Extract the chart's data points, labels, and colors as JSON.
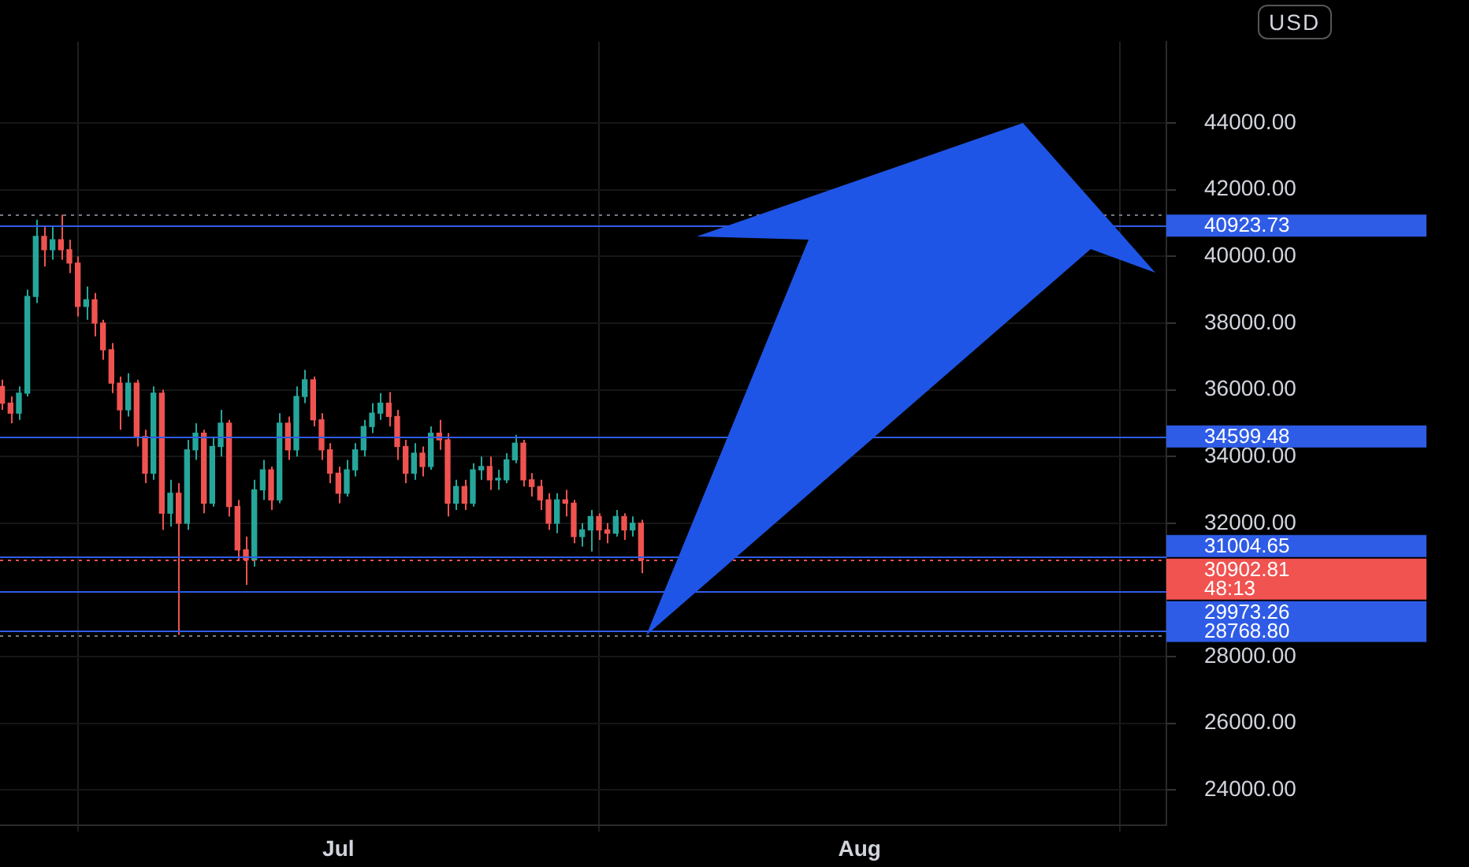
{
  "chart_data": {
    "type": "candlestick",
    "x": [
      "--06-11T00:00",
      "--06-11T12:00",
      "--06-12T00:00",
      "--06-12T12:00",
      "--06-13T00:00",
      "--06-13T12:00",
      "--06-14T00:00",
      "--06-14T12:00",
      "--06-15T00:00",
      "--06-15T12:00",
      "--06-16T00:00",
      "--06-16T12:00",
      "--06-17T00:00",
      "--06-17T12:00",
      "--06-18T00:00",
      "--06-18T12:00",
      "--06-19T00:00",
      "--06-19T12:00",
      "--06-20T00:00",
      "--06-20T12:00",
      "--06-21T00:00",
      "--06-21T12:00",
      "--06-22T00:00",
      "--06-22T12:00",
      "--06-23T00:00",
      "--06-23T12:00",
      "--06-24T00:00",
      "--06-24T12:00",
      "--06-25T00:00",
      "--06-25T12:00",
      "--06-26T00:00",
      "--06-26T12:00",
      "--06-27T00:00",
      "--06-27T12:00",
      "--06-28T00:00",
      "--06-28T12:00",
      "--06-29T00:00",
      "--06-29T12:00",
      "--06-30T00:00",
      "--06-30T12:00",
      "--07-01T00:00",
      "--07-01T12:00",
      "--07-02T00:00",
      "--07-02T12:00",
      "--07-03T00:00",
      "--07-03T12:00",
      "--07-04T00:00",
      "--07-04T12:00",
      "--07-05T00:00",
      "--07-05T12:00",
      "--07-06T00:00",
      "--07-06T12:00",
      "--07-07T00:00",
      "--07-07T12:00",
      "--07-08T00:00",
      "--07-08T12:00",
      "--07-09T00:00",
      "--07-09T12:00",
      "--07-10T00:00",
      "--07-10T12:00",
      "--07-11T00:00",
      "--07-11T12:00",
      "--07-12T00:00",
      "--07-12T12:00",
      "--07-13T00:00",
      "--07-13T12:00",
      "--07-14T00:00",
      "--07-14T12:00",
      "--07-15T00:00",
      "--07-15T12:00",
      "--07-16T00:00",
      "--07-16T12:00",
      "--07-17T00:00",
      "--07-17T12:00",
      "--07-18T00:00",
      "--07-18T12:00",
      "--07-19T00:00"
    ],
    "ohlc": [
      [
        36100,
        36300,
        35400,
        35600
      ],
      [
        35600,
        35800,
        35000,
        35300
      ],
      [
        35300,
        36100,
        35100,
        35900
      ],
      [
        35900,
        39000,
        35800,
        38800
      ],
      [
        38800,
        41100,
        38600,
        40600
      ],
      [
        40600,
        40900,
        39700,
        40200
      ],
      [
        40200,
        40900,
        39900,
        40500
      ],
      [
        40500,
        41250,
        39900,
        40200
      ],
      [
        40200,
        40500,
        39500,
        39800
      ],
      [
        39800,
        40000,
        38200,
        38500
      ],
      [
        38500,
        39100,
        38100,
        38700
      ],
      [
        38700,
        38900,
        37600,
        38000
      ],
      [
        38000,
        38100,
        36900,
        37200
      ],
      [
        37200,
        37400,
        35900,
        36200
      ],
      [
        36200,
        36400,
        34800,
        35400
      ],
      [
        35400,
        36500,
        35200,
        36200
      ],
      [
        36200,
        36300,
        34300,
        34600
      ],
      [
        34600,
        34800,
        33200,
        33500
      ],
      [
        33500,
        36100,
        33300,
        35900
      ],
      [
        35900,
        36000,
        31800,
        32300
      ],
      [
        32300,
        33300,
        31900,
        32900
      ],
      [
        32900,
        33200,
        28650,
        32000
      ],
      [
        32000,
        34500,
        31800,
        34200
      ],
      [
        34200,
        35000,
        33900,
        34700
      ],
      [
        34700,
        34800,
        32300,
        32600
      ],
      [
        32600,
        34600,
        32500,
        34300
      ],
      [
        34300,
        35400,
        34000,
        35000
      ],
      [
        35000,
        35100,
        32200,
        32500
      ],
      [
        32500,
        32700,
        30900,
        31200
      ],
      [
        31200,
        31600,
        30150,
        30900
      ],
      [
        30900,
        33300,
        30700,
        33000
      ],
      [
        33000,
        33900,
        32700,
        33600
      ],
      [
        33600,
        33700,
        32400,
        32700
      ],
      [
        32700,
        35300,
        32600,
        35000
      ],
      [
        35000,
        35200,
        33900,
        34200
      ],
      [
        34200,
        36100,
        34000,
        35800
      ],
      [
        35800,
        36600,
        35600,
        36300
      ],
      [
        36300,
        36400,
        34900,
        35100
      ],
      [
        35100,
        35300,
        33900,
        34200
      ],
      [
        34200,
        34400,
        33200,
        33500
      ],
      [
        33500,
        33700,
        32600,
        32900
      ],
      [
        32900,
        33900,
        32800,
        33600
      ],
      [
        33600,
        34400,
        33400,
        34200
      ],
      [
        34200,
        35100,
        34000,
        34900
      ],
      [
        34900,
        35600,
        34700,
        35300
      ],
      [
        35300,
        35900,
        35100,
        35600
      ],
      [
        35600,
        35930,
        34900,
        35200
      ],
      [
        35200,
        35400,
        33900,
        34300
      ],
      [
        34300,
        34500,
        33200,
        33500
      ],
      [
        33500,
        34400,
        33300,
        34100
      ],
      [
        34100,
        34300,
        33400,
        33700
      ],
      [
        33700,
        34900,
        33600,
        34700
      ],
      [
        34700,
        35100,
        34200,
        34500
      ],
      [
        34500,
        34700,
        32200,
        32600
      ],
      [
        32600,
        33300,
        32400,
        33100
      ],
      [
        33100,
        33300,
        32400,
        32600
      ],
      [
        32600,
        33800,
        32500,
        33600
      ],
      [
        33600,
        34000,
        33300,
        33700
      ],
      [
        33700,
        34000,
        33000,
        33300
      ],
      [
        33300,
        33600,
        33000,
        33300
      ],
      [
        33300,
        34100,
        33200,
        33900
      ],
      [
        33900,
        34650,
        33800,
        34400
      ],
      [
        34400,
        34500,
        33100,
        33300
      ],
      [
        33300,
        33500,
        32800,
        33100
      ],
      [
        33100,
        33300,
        32400,
        32700
      ],
      [
        32700,
        32900,
        31800,
        32000
      ],
      [
        32000,
        32900,
        31700,
        32700
      ],
      [
        32700,
        33000,
        32200,
        32600
      ],
      [
        32600,
        32700,
        31400,
        31600
      ],
      [
        31600,
        32000,
        31300,
        31800
      ],
      [
        31800,
        32400,
        31150,
        32200
      ],
      [
        32200,
        32300,
        31500,
        31800
      ],
      [
        31800,
        32000,
        31400,
        31700
      ],
      [
        31700,
        32400,
        31600,
        32200
      ],
      [
        32200,
        32300,
        31500,
        31800
      ],
      [
        31800,
        32200,
        31600,
        32000
      ],
      [
        32000,
        32100,
        30500,
        30902.81
      ]
    ],
    "colors": [
      "#ef5350",
      "#ef5350",
      "#26a69a",
      "#26a69a",
      "#26a69a",
      "#ef5350",
      "#26a69a",
      "#ef5350",
      "#ef5350",
      "#ef5350",
      "#26a69a",
      "#ef5350",
      "#ef5350",
      "#ef5350",
      "#ef5350",
      "#26a69a",
      "#ef5350",
      "#ef5350",
      "#26a69a",
      "#ef5350",
      "#26a69a",
      "#ef5350",
      "#26a69a",
      "#26a69a",
      "#ef5350",
      "#26a69a",
      "#26a69a",
      "#ef5350",
      "#ef5350",
      "#ef5350",
      "#26a69a",
      "#26a69a",
      "#ef5350",
      "#26a69a",
      "#ef5350",
      "#26a69a",
      "#26a69a",
      "#ef5350",
      "#ef5350",
      "#ef5350",
      "#ef5350",
      "#26a69a",
      "#26a69a",
      "#26a69a",
      "#26a69a",
      "#26a69a",
      "#ef5350",
      "#ef5350",
      "#ef5350",
      "#26a69a",
      "#ef5350",
      "#26a69a",
      "#ef5350",
      "#ef5350",
      "#26a69a",
      "#ef5350",
      "#26a69a",
      "#26a69a",
      "#ef5350",
      "#26a69a",
      "#26a69a",
      "#26a69a",
      "#ef5350",
      "#ef5350",
      "#ef5350",
      "#ef5350",
      "#26a69a",
      "#ef5350",
      "#ef5350",
      "#26a69a",
      "#26a69a",
      "#ef5350",
      "#ef5350",
      "#26a69a",
      "#ef5350",
      "#26a69a",
      "#ef5350"
    ],
    "xlim": [
      "--06-10T21:00",
      "--08-19T06:00"
    ],
    "xticks": [
      {
        "value": "--07-01",
        "label": "Jul"
      },
      {
        "value": "--08-01",
        "label": "Aug"
      }
    ],
    "ylim": [
      22940,
      46440
    ],
    "yticks": [
      {
        "value": 24000,
        "label": "24000.00"
      },
      {
        "value": 26000,
        "label": "26000.00"
      },
      {
        "value": 28000,
        "label": "28000.00"
      },
      {
        "value": 32000,
        "label": "32000.00"
      },
      {
        "value": 34000,
        "label": "34000.00"
      },
      {
        "value": 36000,
        "label": "36000.00"
      },
      {
        "value": 38000,
        "label": "38000.00"
      },
      {
        "value": 40000,
        "label": "40000.00"
      },
      {
        "value": 42000,
        "label": "42000.00"
      },
      {
        "value": 44000,
        "label": "44000.00"
      }
    ],
    "grid": true,
    "legend": false,
    "ref_lines": [
      {
        "axis": "y",
        "value": 41250,
        "label": null,
        "color": "#787b86",
        "line_style": "dotted"
      },
      {
        "axis": "y",
        "value": 40923.73,
        "label": "40923.73",
        "color": "#2f5ce6",
        "line_style": "solid"
      },
      {
        "axis": "y",
        "value": 34599.48,
        "label": "34599.48",
        "color": "#2f5ce6",
        "line_style": "solid"
      },
      {
        "axis": "y",
        "value": 31004.65,
        "label": "31004.65",
        "color": "#2f5ce6",
        "line_style": "solid"
      },
      {
        "axis": "y",
        "value": 30902.81,
        "label": "30902.81\n48:13",
        "color": "#f05350",
        "line_style": "dotted"
      },
      {
        "axis": "y",
        "value": 29973.26,
        "label": "29973.26",
        "color": "#2f5ce6",
        "line_style": "solid"
      },
      {
        "axis": "y",
        "value": 28768.8,
        "label": "28768.80",
        "color": "#2f5ce6",
        "line_style": "solid"
      },
      {
        "axis": "y",
        "value": 28650,
        "label": null,
        "color": "#787b86",
        "line_style": "dotted"
      }
    ],
    "annotations": [
      "USD"
    ]
  }
}
